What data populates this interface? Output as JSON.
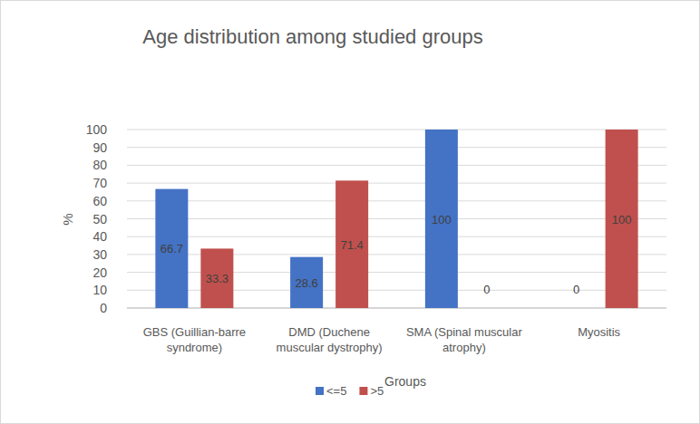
{
  "chart_data": {
    "type": "bar",
    "title": "Age distribution among studied groups",
    "x_label": "Groups",
    "y_label": "%",
    "categories": [
      "GBS (Guillian-barre syndrome)",
      "DMD (Duchene muscular dystrophy)",
      "SMA (Spinal muscular atrophy)",
      "Myositis"
    ],
    "series": [
      {
        "name": "<=5",
        "color": "#4472c4",
        "values": [
          66.7,
          28.6,
          100,
          0
        ]
      },
      {
        "name": ">5",
        "color": "#c0504d",
        "values": [
          33.3,
          71.4,
          0,
          100
        ]
      }
    ],
    "ylim": [
      0,
      100
    ],
    "yticks": [
      0,
      10,
      20,
      30,
      40,
      50,
      60,
      70,
      80,
      90,
      100
    ],
    "grid": true,
    "legend": "bottom",
    "data_labels": true
  }
}
